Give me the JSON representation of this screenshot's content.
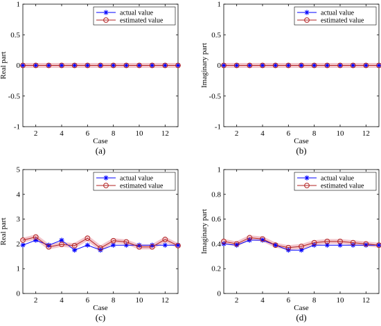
{
  "panels": [
    {
      "letter": "a",
      "caption": "(a)"
    },
    {
      "letter": "b",
      "caption": "(b)"
    },
    {
      "letter": "c",
      "caption": "(c)"
    },
    {
      "letter": "d",
      "caption": "(d)"
    }
  ],
  "colors": {
    "actual": "#0000ff",
    "estimated": "#b22222",
    "shadow": "#f2c6cc"
  },
  "chart_data": [
    {
      "type": "line",
      "xlabel": "Case",
      "ylabel": "Real part",
      "xlim": [
        1,
        13
      ],
      "ylim": [
        -1,
        1
      ],
      "xticks": [
        2,
        4,
        6,
        8,
        10,
        12
      ],
      "yticks": [
        -1,
        -0.5,
        0,
        0.5,
        1
      ],
      "legend_position": "top-right",
      "x": [
        1,
        2,
        3,
        4,
        5,
        6,
        7,
        8,
        9,
        10,
        11,
        12,
        13
      ],
      "series": [
        {
          "name": "actual value",
          "marker": "asterisk",
          "values": [
            0,
            0,
            0,
            0,
            0,
            0,
            0,
            0,
            0,
            0,
            0,
            0,
            0
          ]
        },
        {
          "name": "estimated value",
          "marker": "circle",
          "values": [
            0,
            0,
            0,
            0,
            0,
            0,
            0,
            0,
            0,
            0,
            0,
            0,
            0
          ]
        }
      ]
    },
    {
      "type": "line",
      "xlabel": "Case",
      "ylabel": "Imaginary part",
      "xlim": [
        1,
        13
      ],
      "ylim": [
        -1,
        1
      ],
      "xticks": [
        2,
        4,
        6,
        8,
        10,
        12
      ],
      "yticks": [
        -1,
        -0.5,
        0,
        0.5,
        1
      ],
      "legend_position": "top-right",
      "x": [
        1,
        2,
        3,
        4,
        5,
        6,
        7,
        8,
        9,
        10,
        11,
        12,
        13
      ],
      "series": [
        {
          "name": "actual value",
          "marker": "asterisk",
          "values": [
            0,
            0,
            0,
            0,
            0,
            0,
            0,
            0,
            0,
            0,
            0,
            0,
            0
          ]
        },
        {
          "name": "estimated value",
          "marker": "circle",
          "values": [
            0,
            0,
            0,
            0,
            0,
            0,
            0,
            0,
            0,
            0,
            0,
            0,
            0
          ]
        }
      ]
    },
    {
      "type": "line",
      "xlabel": "Case",
      "ylabel": "Real part",
      "xlim": [
        1,
        13
      ],
      "ylim": [
        0,
        5
      ],
      "xticks": [
        2,
        4,
        6,
        8,
        10,
        12
      ],
      "yticks": [
        0,
        1,
        2,
        3,
        4,
        5
      ],
      "legend_position": "top-right",
      "x": [
        1,
        2,
        3,
        4,
        5,
        6,
        7,
        8,
        9,
        10,
        11,
        12,
        13
      ],
      "series": [
        {
          "name": "actual value",
          "marker": "asterisk",
          "values": [
            1.95,
            2.15,
            1.95,
            2.15,
            1.75,
            1.95,
            1.75,
            1.95,
            1.95,
            1.95,
            1.95,
            1.95,
            1.95
          ]
        },
        {
          "name": "estimated value",
          "marker": "circle",
          "values": [
            2.15,
            2.28,
            1.88,
            1.98,
            1.93,
            2.23,
            1.83,
            2.13,
            2.08,
            1.88,
            1.88,
            2.18,
            1.93
          ]
        }
      ]
    },
    {
      "type": "line",
      "xlabel": "Case",
      "ylabel": "Imaginary part",
      "xlim": [
        1,
        13
      ],
      "ylim": [
        0,
        1
      ],
      "xticks": [
        2,
        4,
        6,
        8,
        10,
        12
      ],
      "yticks": [
        0,
        0.2,
        0.4,
        0.6,
        0.8,
        1
      ],
      "legend_position": "top-right",
      "x": [
        1,
        2,
        3,
        4,
        5,
        6,
        7,
        8,
        9,
        10,
        11,
        12,
        13
      ],
      "series": [
        {
          "name": "actual value",
          "marker": "asterisk",
          "values": [
            0.4,
            0.39,
            0.43,
            0.43,
            0.39,
            0.35,
            0.35,
            0.39,
            0.39,
            0.39,
            0.39,
            0.39,
            0.39
          ]
        },
        {
          "name": "estimated value",
          "marker": "circle",
          "values": [
            0.42,
            0.4,
            0.45,
            0.44,
            0.39,
            0.37,
            0.38,
            0.41,
            0.42,
            0.42,
            0.41,
            0.4,
            0.39
          ]
        }
      ]
    }
  ]
}
